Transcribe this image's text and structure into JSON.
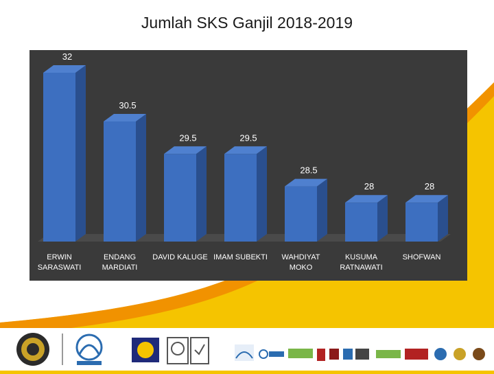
{
  "slide": {
    "title": "Jumlah SKS Ganjil 2018-2019",
    "colors": {
      "background": "#f5c400",
      "panel": "#3a3a3a",
      "bar_front": "#3d6fc0",
      "bar_side": "#2a4f8e",
      "bar_top": "#4f80cf",
      "label": "#ffffff"
    }
  },
  "chart_data": {
    "type": "bar",
    "title": "Jumlah SKS Ganjil 2018-2019",
    "categories": [
      [
        "ERWIN",
        "SARASWATI"
      ],
      [
        "ENDANG",
        "MARDIATI"
      ],
      [
        "DAVID KALUGE"
      ],
      [
        "IMAM SUBEKTI"
      ],
      [
        "WAHDIYAT",
        "MOKO"
      ],
      [
        "KUSUMA",
        "RATNAWATI"
      ],
      [
        "SHOFWAN"
      ]
    ],
    "values": [
      32,
      30.5,
      29.5,
      29.5,
      28.5,
      28,
      28
    ],
    "value_labels": [
      "32",
      "30.5",
      "29.5",
      "29.5",
      "28.5",
      "28",
      "28"
    ],
    "ylim": [
      26.8,
      32
    ],
    "grid": false,
    "legend": "none"
  }
}
